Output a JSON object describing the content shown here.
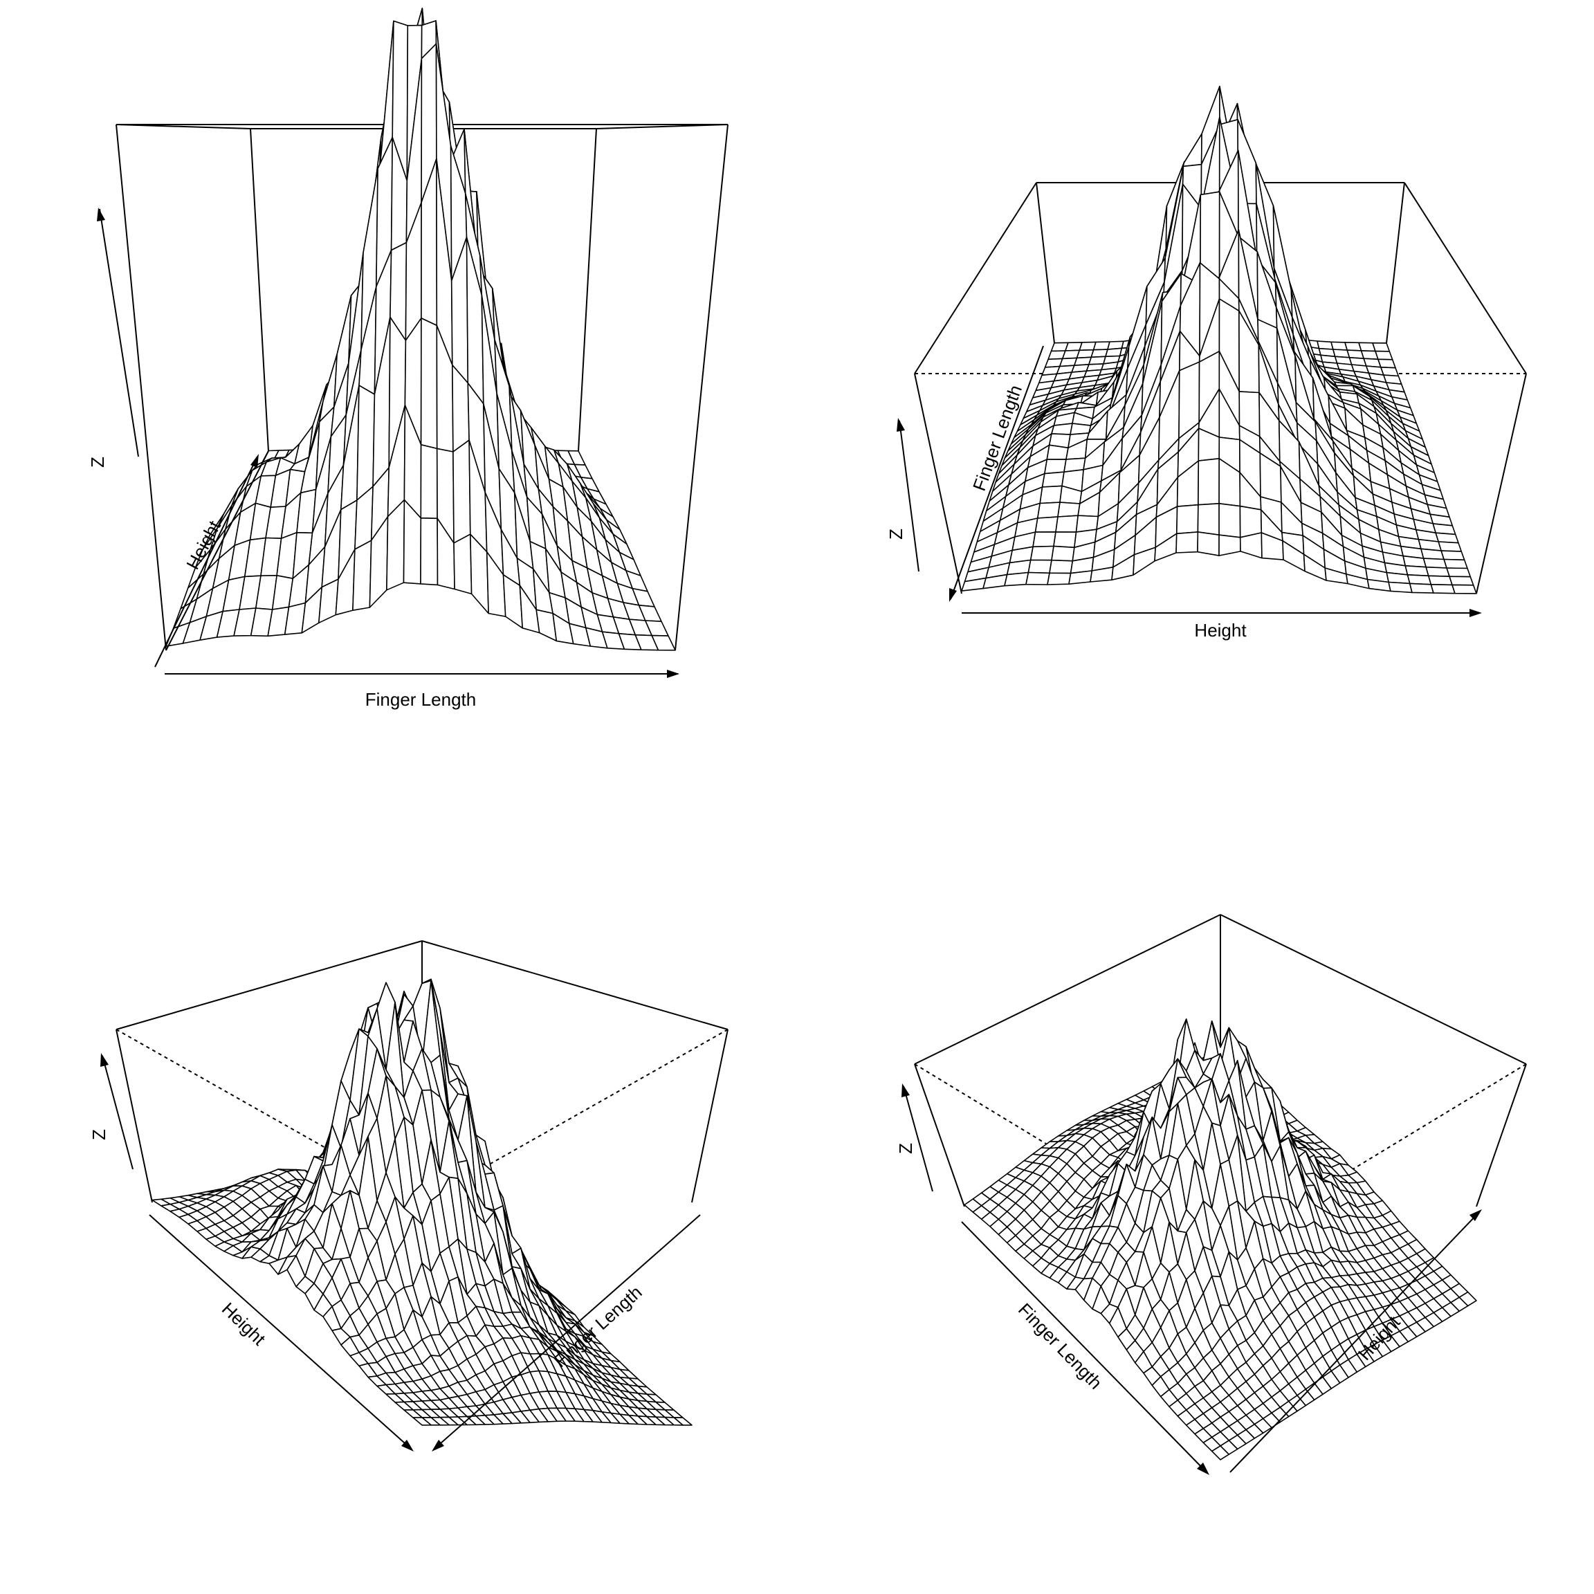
{
  "chart_data": [
    {
      "type": "surface",
      "panel": "top-left",
      "title": "",
      "xlabel": "Finger Length",
      "ylabel": "Height",
      "zlabel": "Z",
      "view": {
        "theta": 0,
        "phi": 15
      },
      "box": true,
      "ticks": false
    },
    {
      "type": "surface",
      "panel": "top-right",
      "title": "",
      "xlabel": "Height",
      "ylabel": "Finger Length",
      "zlabel": "Z",
      "view": {
        "theta": 90,
        "phi": 20
      },
      "box": true,
      "ticks": false
    },
    {
      "type": "surface",
      "panel": "bottom-left",
      "title": "",
      "xlabel": "Finger Length",
      "ylabel": "Height",
      "zlabel": "Z",
      "view": {
        "theta": -45,
        "phi": 25
      },
      "box": true,
      "ticks": false
    },
    {
      "type": "surface",
      "panel": "bottom-right",
      "title": "",
      "xlabel": "Height",
      "ylabel": "Finger Length",
      "zlabel": "Z",
      "view": {
        "theta": 45,
        "phi": 30
      },
      "box": true,
      "ticks": false
    }
  ]
}
